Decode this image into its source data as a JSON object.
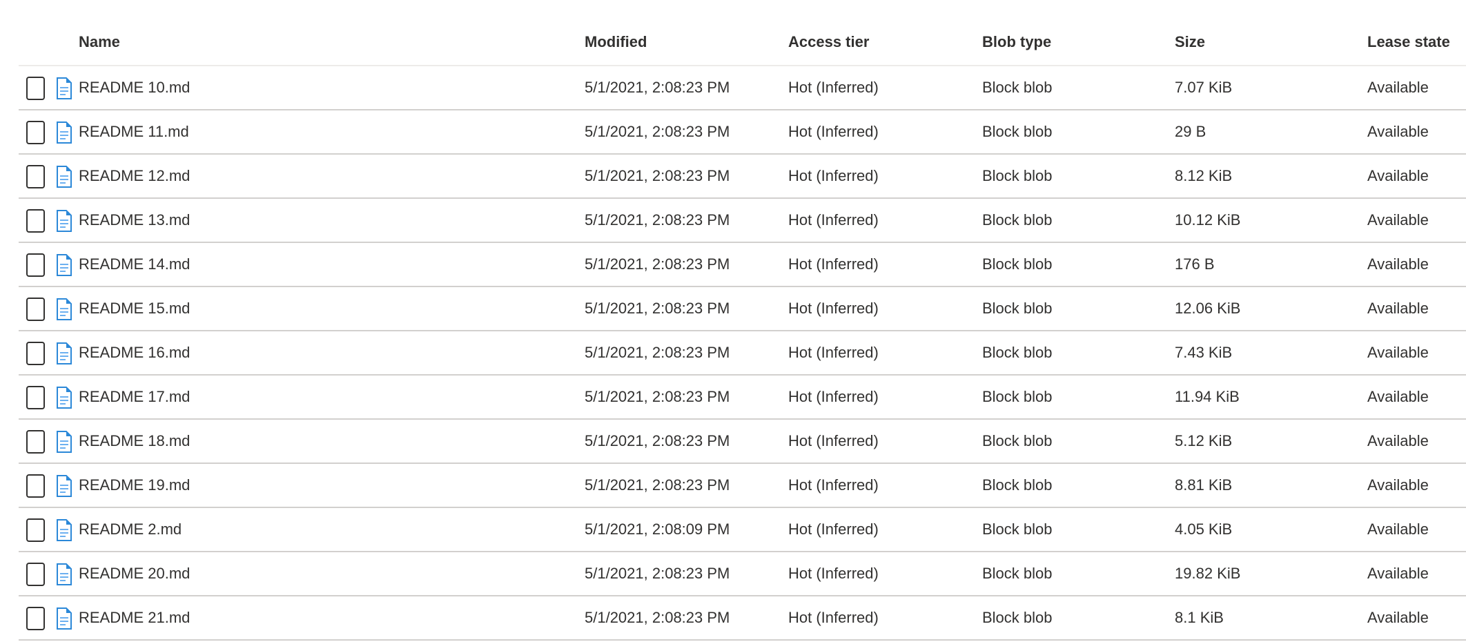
{
  "columns": {
    "name": "Name",
    "modified": "Modified",
    "tier": "Access tier",
    "blob_type": "Blob type",
    "size": "Size",
    "lease": "Lease state"
  },
  "colors": {
    "icon": "#2b88d8",
    "text": "#323130",
    "border": "#d2d0ce"
  },
  "rows": [
    {
      "name": "README 10.md",
      "modified": "5/1/2021, 2:08:23 PM",
      "tier": "Hot (Inferred)",
      "blob_type": "Block blob",
      "size": "7.07 KiB",
      "lease": "Available"
    },
    {
      "name": "README 11.md",
      "modified": "5/1/2021, 2:08:23 PM",
      "tier": "Hot (Inferred)",
      "blob_type": "Block blob",
      "size": "29 B",
      "lease": "Available"
    },
    {
      "name": "README 12.md",
      "modified": "5/1/2021, 2:08:23 PM",
      "tier": "Hot (Inferred)",
      "blob_type": "Block blob",
      "size": "8.12 KiB",
      "lease": "Available"
    },
    {
      "name": "README 13.md",
      "modified": "5/1/2021, 2:08:23 PM",
      "tier": "Hot (Inferred)",
      "blob_type": "Block blob",
      "size": "10.12 KiB",
      "lease": "Available"
    },
    {
      "name": "README 14.md",
      "modified": "5/1/2021, 2:08:23 PM",
      "tier": "Hot (Inferred)",
      "blob_type": "Block blob",
      "size": "176 B",
      "lease": "Available"
    },
    {
      "name": "README 15.md",
      "modified": "5/1/2021, 2:08:23 PM",
      "tier": "Hot (Inferred)",
      "blob_type": "Block blob",
      "size": "12.06 KiB",
      "lease": "Available"
    },
    {
      "name": "README 16.md",
      "modified": "5/1/2021, 2:08:23 PM",
      "tier": "Hot (Inferred)",
      "blob_type": "Block blob",
      "size": "7.43 KiB",
      "lease": "Available"
    },
    {
      "name": "README 17.md",
      "modified": "5/1/2021, 2:08:23 PM",
      "tier": "Hot (Inferred)",
      "blob_type": "Block blob",
      "size": "11.94 KiB",
      "lease": "Available"
    },
    {
      "name": "README 18.md",
      "modified": "5/1/2021, 2:08:23 PM",
      "tier": "Hot (Inferred)",
      "blob_type": "Block blob",
      "size": "5.12 KiB",
      "lease": "Available"
    },
    {
      "name": "README 19.md",
      "modified": "5/1/2021, 2:08:23 PM",
      "tier": "Hot (Inferred)",
      "blob_type": "Block blob",
      "size": "8.81 KiB",
      "lease": "Available"
    },
    {
      "name": "README 2.md",
      "modified": "5/1/2021, 2:08:09 PM",
      "tier": "Hot (Inferred)",
      "blob_type": "Block blob",
      "size": "4.05 KiB",
      "lease": "Available"
    },
    {
      "name": "README 20.md",
      "modified": "5/1/2021, 2:08:23 PM",
      "tier": "Hot (Inferred)",
      "blob_type": "Block blob",
      "size": "19.82 KiB",
      "lease": "Available"
    },
    {
      "name": "README 21.md",
      "modified": "5/1/2021, 2:08:23 PM",
      "tier": "Hot (Inferred)",
      "blob_type": "Block blob",
      "size": "8.1 KiB",
      "lease": "Available"
    }
  ]
}
